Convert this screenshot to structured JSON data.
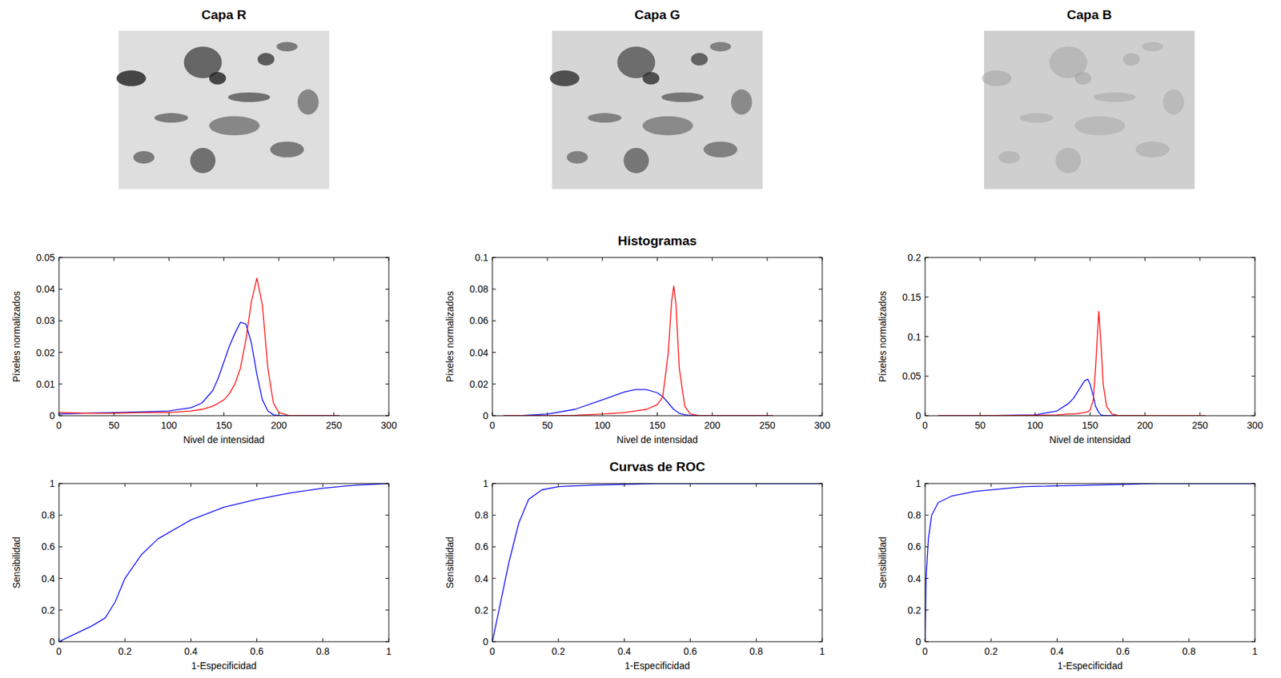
{
  "chart_data": [
    {
      "type": "image",
      "title": "Capa R"
    },
    {
      "type": "image",
      "title": "Capa G"
    },
    {
      "type": "image",
      "title": "Capa B"
    },
    {
      "type": "line",
      "xlabel": "Nivel de intensidad",
      "ylabel": "Píxeles normalizados",
      "x": [
        0,
        25,
        50,
        75,
        100,
        120,
        130,
        140,
        145,
        150,
        155,
        160,
        165,
        170,
        175,
        180,
        185,
        190,
        195,
        200,
        210,
        255
      ],
      "series": [
        {
          "color": "#0000ff",
          "values": [
            0.0005,
            0.0008,
            0.001,
            0.0012,
            0.0015,
            0.0025,
            0.004,
            0.008,
            0.012,
            0.017,
            0.022,
            0.026,
            0.0295,
            0.029,
            0.023,
            0.013,
            0.005,
            0.0015,
            0.0003,
            0,
            0,
            0
          ]
        },
        {
          "color": "#ff0000",
          "values": [
            0.001,
            0.0008,
            0.0008,
            0.001,
            0.001,
            0.0015,
            0.002,
            0.003,
            0.004,
            0.005,
            0.007,
            0.01,
            0.015,
            0.024,
            0.036,
            0.0435,
            0.035,
            0.015,
            0.004,
            0.001,
            0,
            0
          ]
        }
      ],
      "xlim": [
        0,
        300
      ],
      "ylim": [
        0,
        0.05
      ],
      "xticks": [
        0,
        50,
        100,
        150,
        200,
        250,
        300
      ],
      "yticks": [
        0,
        0.01,
        0.02,
        0.03,
        0.04,
        0.05
      ]
    },
    {
      "type": "line",
      "title": "Histogramas",
      "xlabel": "Nivel de intensidad",
      "ylabel": "Píxeles normalizados",
      "x": [
        10,
        25,
        50,
        75,
        100,
        120,
        130,
        140,
        150,
        155,
        160,
        163,
        165,
        167,
        170,
        175,
        180,
        190,
        200,
        255
      ],
      "series": [
        {
          "color": "#0000ff",
          "values": [
            0,
            0,
            0.001,
            0.004,
            0.01,
            0.015,
            0.0165,
            0.0165,
            0.0145,
            0.012,
            0.008,
            0.0055,
            0.004,
            0.003,
            0.0015,
            0.0006,
            0.0002,
            0,
            0,
            0
          ]
        },
        {
          "color": "#ff0000",
          "values": [
            0,
            0,
            0,
            0.0003,
            0.001,
            0.002,
            0.003,
            0.004,
            0.007,
            0.012,
            0.04,
            0.072,
            0.082,
            0.07,
            0.03,
            0.006,
            0.001,
            0,
            0,
            0
          ]
        }
      ],
      "xlim": [
        0,
        300
      ],
      "ylim": [
        0,
        0.1
      ],
      "xticks": [
        0,
        50,
        100,
        150,
        200,
        250,
        300
      ],
      "yticks": [
        0,
        0.02,
        0.04,
        0.06,
        0.08,
        0.1
      ]
    },
    {
      "type": "line",
      "xlabel": "Nivel de intensidad",
      "ylabel": "Píxeles normalizados",
      "x": [
        12,
        50,
        100,
        120,
        130,
        135,
        140,
        145,
        148,
        150,
        153,
        155,
        158,
        160,
        162,
        165,
        170,
        175,
        200,
        255
      ],
      "series": [
        {
          "color": "#0000ff",
          "values": [
            0,
            0,
            0.001,
            0.006,
            0.015,
            0.022,
            0.033,
            0.044,
            0.046,
            0.04,
            0.025,
            0.012,
            0.004,
            0.001,
            0.0005,
            0,
            0,
            0,
            0,
            null
          ]
        },
        {
          "color": "#ff0000",
          "values": [
            0,
            0,
            0.0005,
            0.001,
            0.002,
            0.002,
            0.003,
            0.004,
            0.005,
            0.007,
            0.02,
            0.06,
            0.132,
            0.09,
            0.04,
            0.012,
            0.002,
            0.0005,
            0,
            0
          ]
        }
      ],
      "xlim": [
        0,
        300
      ],
      "ylim": [
        0,
        0.2
      ],
      "xticks": [
        0,
        50,
        100,
        150,
        200,
        250,
        300
      ],
      "yticks": [
        0,
        0.05,
        0.1,
        0.15,
        0.2
      ]
    },
    {
      "type": "line",
      "xlabel": "1-Especificidad",
      "ylabel": "Sensibilidad",
      "x": [
        0,
        0.05,
        0.1,
        0.14,
        0.17,
        0.2,
        0.25,
        0.3,
        0.4,
        0.5,
        0.6,
        0.7,
        0.8,
        0.9,
        1
      ],
      "series": [
        {
          "color": "#0000ff",
          "values": [
            0,
            0.05,
            0.1,
            0.15,
            0.25,
            0.4,
            0.55,
            0.65,
            0.77,
            0.85,
            0.9,
            0.94,
            0.97,
            0.99,
            1
          ]
        }
      ],
      "xlim": [
        0,
        1
      ],
      "ylim": [
        0,
        1
      ],
      "xticks": [
        0,
        0.2,
        0.4,
        0.6,
        0.8,
        1
      ],
      "yticks": [
        0,
        0.2,
        0.4,
        0.6,
        0.8,
        1
      ]
    },
    {
      "type": "line",
      "title": "Curvas de ROC",
      "xlabel": "1-Especificidad",
      "ylabel": "Sensibilidad",
      "x": [
        0,
        0.02,
        0.05,
        0.08,
        0.11,
        0.15,
        0.2,
        0.3,
        0.5,
        1
      ],
      "series": [
        {
          "color": "#0000ff",
          "values": [
            0,
            0.2,
            0.5,
            0.75,
            0.9,
            0.96,
            0.98,
            0.99,
            1,
            1
          ]
        }
      ],
      "xlim": [
        0,
        1
      ],
      "ylim": [
        0,
        1
      ],
      "xticks": [
        0,
        0.2,
        0.4,
        0.6,
        0.8,
        1
      ],
      "yticks": [
        0,
        0.2,
        0.4,
        0.6,
        0.8,
        1
      ]
    },
    {
      "type": "line",
      "xlabel": "1-Especificidad",
      "ylabel": "Sensibilidad",
      "x": [
        0,
        0.003,
        0.01,
        0.02,
        0.04,
        0.08,
        0.15,
        0.3,
        0.5,
        0.7,
        1
      ],
      "series": [
        {
          "color": "#0000ff",
          "values": [
            0,
            0.4,
            0.65,
            0.8,
            0.88,
            0.92,
            0.95,
            0.98,
            0.99,
            1,
            1
          ]
        }
      ],
      "xlim": [
        0,
        1
      ],
      "ylim": [
        0,
        1
      ],
      "xticks": [
        0,
        0.2,
        0.4,
        0.6,
        0.8,
        1
      ],
      "yticks": [
        0,
        0.2,
        0.4,
        0.6,
        0.8,
        1
      ]
    }
  ]
}
